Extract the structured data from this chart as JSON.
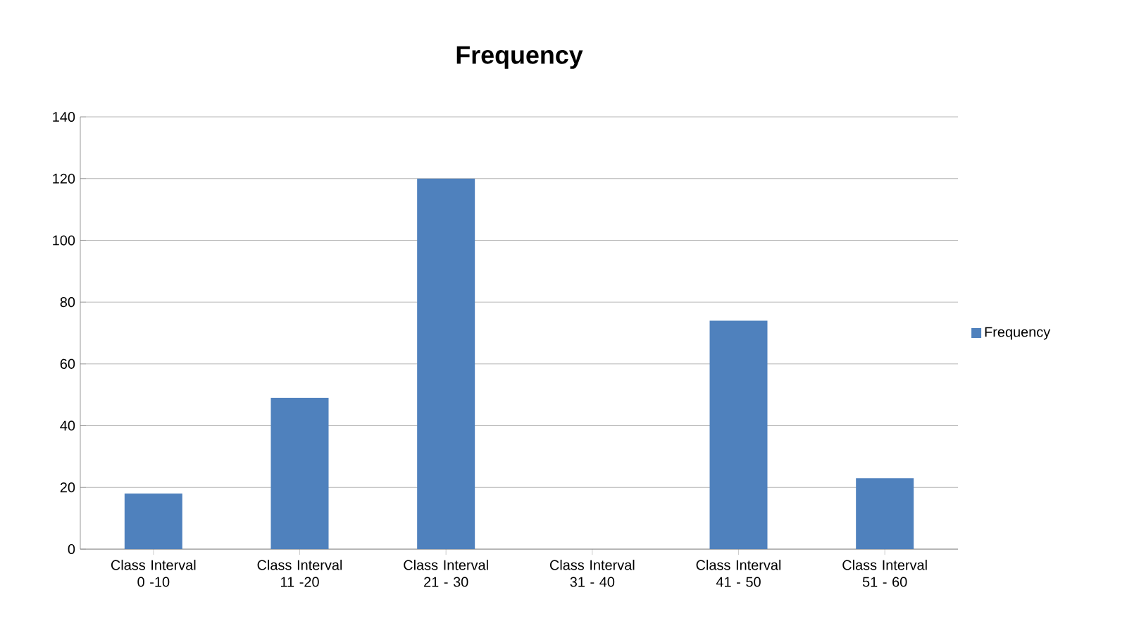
{
  "chart_data": {
    "type": "bar",
    "title": "Frequency",
    "categories": [
      "Class Interval 0 -10",
      "Class Interval 11 -20",
      "Class Interval 21 - 30",
      "Class Interval 31 - 40",
      "Class Interval 41 - 50",
      "Class Interval 51 - 60"
    ],
    "series": [
      {
        "name": "Frequency",
        "color": "#4f81bd",
        "values": [
          18,
          49,
          120,
          0,
          74,
          23
        ]
      }
    ],
    "ylim": [
      0,
      140
    ],
    "yticks": [
      0,
      20,
      40,
      60,
      80,
      100,
      120,
      140
    ],
    "grid": "y",
    "legend": "right"
  }
}
